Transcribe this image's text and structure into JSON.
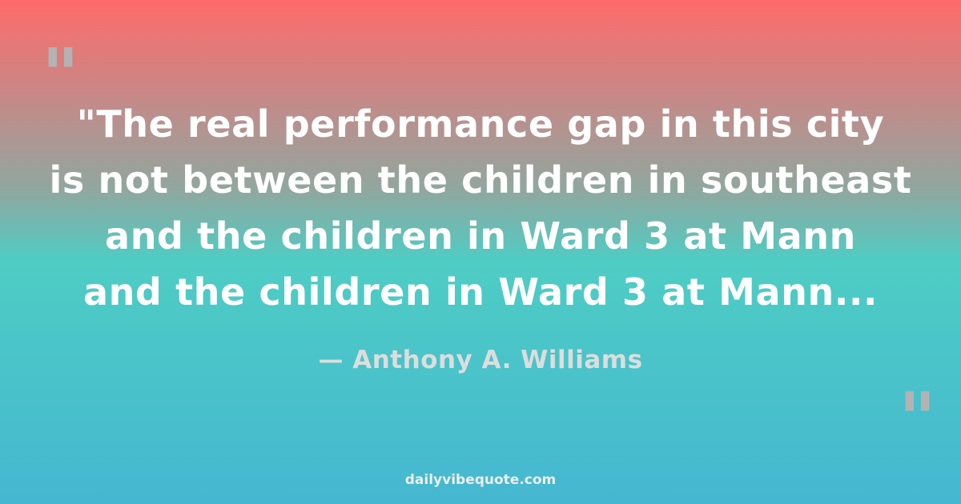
{
  "colors": {
    "top": "#ff6b6b",
    "middle": "#4ecdc4",
    "bottom": "#45b7d1",
    "quote_marks": "#b3b3b3"
  },
  "open_quote_mark": "\"",
  "close_quote_mark": "\"",
  "quote_lines": [
    "\"The real performance gap in this city",
    "is not between the children in southeast",
    "and the children in Ward 3 at Mann",
    "and the children in Ward 3 at Mann..."
  ],
  "author": "— Anthony A. Williams",
  "site": "dailyvibequote.com"
}
